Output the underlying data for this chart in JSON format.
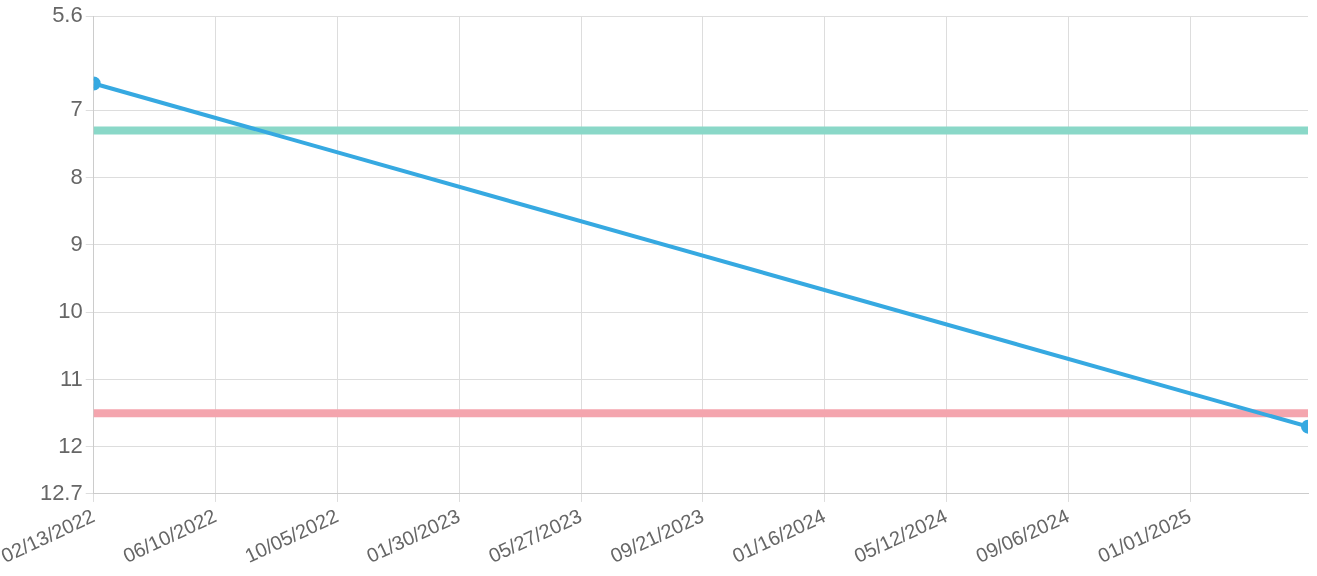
{
  "chart_data": {
    "type": "line",
    "x": [
      "2022-02-13",
      "2025-04-24"
    ],
    "series": [
      {
        "color": "#36a9e1",
        "values": [
          6.6,
          11.7
        ]
      }
    ],
    "xlim": [
      "2022-02-13",
      "2025-04-24"
    ],
    "xticks": [
      {
        "value": "2022-02-13",
        "label": "02/13/2022"
      },
      {
        "value": "2022-06-10",
        "label": "06/10/2022"
      },
      {
        "value": "2022-10-05",
        "label": "10/05/2022"
      },
      {
        "value": "2023-01-30",
        "label": "01/30/2023"
      },
      {
        "value": "2023-05-27",
        "label": "05/27/2023"
      },
      {
        "value": "2023-09-21",
        "label": "09/21/2023"
      },
      {
        "value": "2024-01-16",
        "label": "01/16/2024"
      },
      {
        "value": "2024-05-12",
        "label": "05/12/2024"
      },
      {
        "value": "2024-09-06",
        "label": "09/06/2024"
      },
      {
        "value": "2025-01-01",
        "label": "01/01/2025"
      }
    ],
    "ylim": [
      12.7,
      5.6
    ],
    "yticks": [
      5.6,
      7,
      8,
      9,
      10,
      11,
      12,
      12.7
    ],
    "ref_lines": [
      {
        "axis": "y",
        "value": 7.3,
        "color": "#8ad8c8"
      },
      {
        "axis": "y",
        "value": 11.5,
        "color": "#f4a5ae"
      }
    ],
    "grid": true,
    "legend": false,
    "marker": "circle",
    "line_style": "solid"
  }
}
